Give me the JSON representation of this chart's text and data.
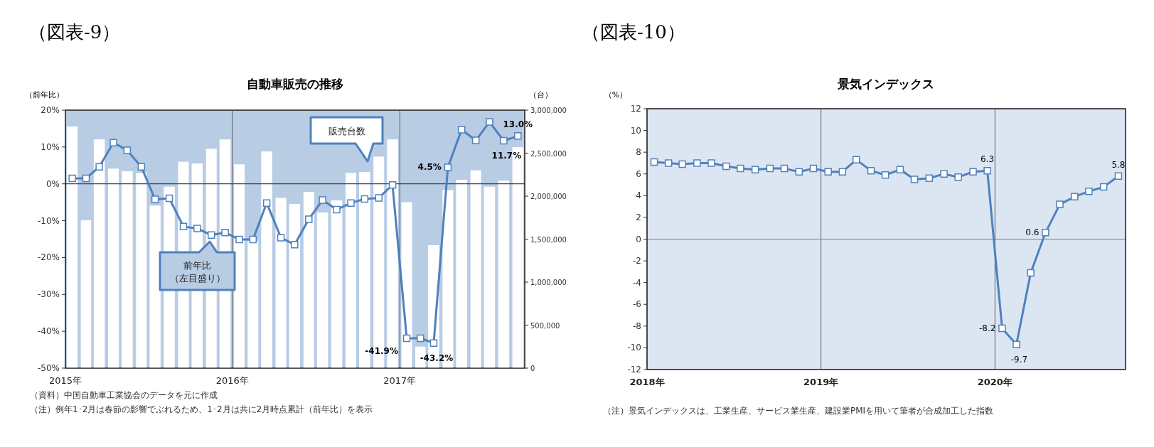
{
  "chart_data": [
    {
      "type": "bar",
      "title": "自動車販売の推移",
      "ylabel": "（前年比）",
      "y2label": "（台）",
      "annotations": [
        "（図表-9）",
        "販売台数",
        "前年比（左目盛り）",
        "（資料）中国自動車工業協会のデータを元に作成",
        "（注）例年1･2月は春節の影響でぶれるため、1･2月は共に2月時点累計（前年比）を表示"
      ],
      "x": [
        "2015-01-16",
        "2015-02-15",
        "2015-03-16",
        "2015-04-16",
        "2015-05-16",
        "2015-06-16",
        "2015-07-16",
        "2015-08-16",
        "2015-09-16",
        "2015-10-16",
        "2015-11-16",
        "2015-12-16",
        "2016-01-16",
        "2016-02-15",
        "2016-03-16",
        "2016-04-16",
        "2016-05-16",
        "2016-06-16",
        "2016-07-16",
        "2016-08-16",
        "2016-09-16",
        "2016-10-16",
        "2016-11-16",
        "2016-12-16",
        "2017-01-16",
        "2017-02-15",
        "2017-03-16",
        "2017-04-16",
        "2017-05-16",
        "2017-06-16",
        "2017-07-16",
        "2017-08-16",
        "2017-09-16"
      ],
      "series": [
        {
          "type": "bar",
          "axis": "y2",
          "color": "#ffffff",
          "values": [
            2810000,
            1720000,
            2660000,
            2320000,
            2290000,
            2270000,
            1890000,
            2110000,
            2400000,
            2380000,
            2550000,
            2660000,
            2370000,
            1480000,
            2520000,
            1980000,
            1910000,
            2050000,
            1810000,
            1950000,
            2270000,
            2280000,
            2460000,
            2660000,
            1930000,
            250000,
            1430000,
            2070000,
            2190000,
            2300000,
            2110000,
            2180000,
            2570000
          ]
        },
        {
          "type": "line",
          "color": "#4f81bd",
          "values": [
            1.5,
            1.5,
            4.6,
            11.2,
            9.1,
            4.6,
            -4.2,
            -3.9,
            -11.6,
            -12.1,
            -13.9,
            -13.2,
            -15.1,
            -15.1,
            -5.2,
            -14.6,
            -16.5,
            -9.6,
            -4.4,
            -7.0,
            -5.2,
            -4.1,
            -3.8,
            -0.3,
            -41.9,
            -41.9,
            -43.2,
            4.5,
            14.7,
            11.8,
            16.8,
            11.7,
            13.0
          ],
          "value_labels": [
            null,
            null,
            null,
            null,
            null,
            null,
            null,
            null,
            null,
            null,
            null,
            null,
            null,
            null,
            null,
            null,
            null,
            null,
            null,
            null,
            null,
            null,
            null,
            null,
            "-41.9%",
            null,
            "-43.2%",
            "4.5%",
            null,
            null,
            null,
            "11.7%",
            "13.0%"
          ]
        }
      ],
      "xlim": [
        "2015-01-01",
        "2017-10-01"
      ],
      "xticks": [
        {
          "value": "2015-01-01",
          "label": "2015年"
        },
        {
          "value": "2016-01-01",
          "label": "2016年"
        },
        {
          "value": "2017-01-01",
          "label": "2017年"
        }
      ],
      "ylim": [
        -50,
        20
      ],
      "yticks": [
        {
          "value": -50,
          "label": "-50%"
        },
        {
          "value": -40,
          "label": "-40%"
        },
        {
          "value": -30,
          "label": "-30%"
        },
        {
          "value": -20,
          "label": "-20%"
        },
        {
          "value": -10,
          "label": "-10%"
        },
        {
          "value": 0,
          "label": "0%"
        },
        {
          "value": 10,
          "label": "10%"
        },
        {
          "value": 20,
          "label": "20%"
        }
      ],
      "y2lim": [
        0,
        3000000
      ],
      "y2ticks": [
        0,
        {
          "value": 500000,
          "label": "500,000"
        },
        {
          "value": 1000000,
          "label": "1,000,000"
        },
        {
          "value": 1500000,
          "label": "1,500,000"
        },
        {
          "value": 2000000,
          "label": "2,000,000"
        },
        {
          "value": 2500000,
          "label": "2,500,000"
        },
        {
          "value": 3000000,
          "label": "3,000,000"
        }
      ],
      "ref_lines": [
        {
          "axis": "y",
          "value": 0,
          "color": "#404040"
        }
      ],
      "grid": "x",
      "marker": "square",
      "line_style": "solid"
    },
    {
      "type": "line",
      "title": "景気インデックス",
      "ylabel": "（%）",
      "annotations": [
        "（図表-10）",
        "（注）景気インデックスは、工業生産、サービス業生産、建設業PMIを用いて筆者が合成加工した指数"
      ],
      "x": [
        "2018-01-16",
        "2018-02-15",
        "2018-03-16",
        "2018-04-16",
        "2018-05-16",
        "2018-06-16",
        "2018-07-16",
        "2018-08-16",
        "2018-09-16",
        "2018-10-16",
        "2018-11-16",
        "2018-12-16",
        "2019-01-16",
        "2019-02-15",
        "2019-03-16",
        "2019-04-16",
        "2019-05-16",
        "2019-06-16",
        "2019-07-16",
        "2019-08-16",
        "2019-09-16",
        "2019-10-16",
        "2019-11-16",
        "2019-12-16",
        "2020-01-16",
        "2020-02-15",
        "2020-03-16",
        "2020-04-16",
        "2020-05-16",
        "2020-06-16",
        "2020-07-16",
        "2020-08-16",
        "2020-09-16"
      ],
      "series": [
        {
          "color": "#4f81bd",
          "values": [
            7.1,
            7.0,
            6.9,
            7.0,
            7.0,
            6.7,
            6.5,
            6.4,
            6.5,
            6.5,
            6.2,
            6.5,
            6.2,
            6.2,
            7.3,
            6.3,
            5.9,
            6.4,
            5.5,
            5.6,
            6.0,
            5.7,
            6.2,
            6.3,
            -8.2,
            -9.7,
            -3.1,
            0.6,
            3.2,
            3.9,
            4.4,
            4.8,
            5.8
          ],
          "value_labels": [
            null,
            null,
            null,
            null,
            null,
            null,
            null,
            null,
            null,
            null,
            null,
            null,
            null,
            null,
            null,
            null,
            null,
            null,
            null,
            null,
            null,
            null,
            null,
            "6.3",
            "-8.2",
            "-9.7",
            null,
            "0.6",
            null,
            null,
            null,
            null,
            "5.8"
          ]
        }
      ],
      "xlim": [
        "2018-01-01",
        "2020-10-01"
      ],
      "xticks": [
        {
          "value": "2018-01-01",
          "label": "2018年"
        },
        {
          "value": "2019-01-01",
          "label": "2019年"
        },
        {
          "value": "2020-01-01",
          "label": "2020年"
        }
      ],
      "ylim": [
        -12,
        12
      ],
      "yticks": [
        -12,
        -10,
        -8,
        -6,
        -4,
        -2,
        0,
        2,
        4,
        6,
        8,
        10,
        12
      ],
      "ref_lines": [
        {
          "axis": "y",
          "value": 0,
          "color": "#808080"
        }
      ],
      "grid": "x",
      "marker": "square",
      "line_style": "solid"
    }
  ]
}
